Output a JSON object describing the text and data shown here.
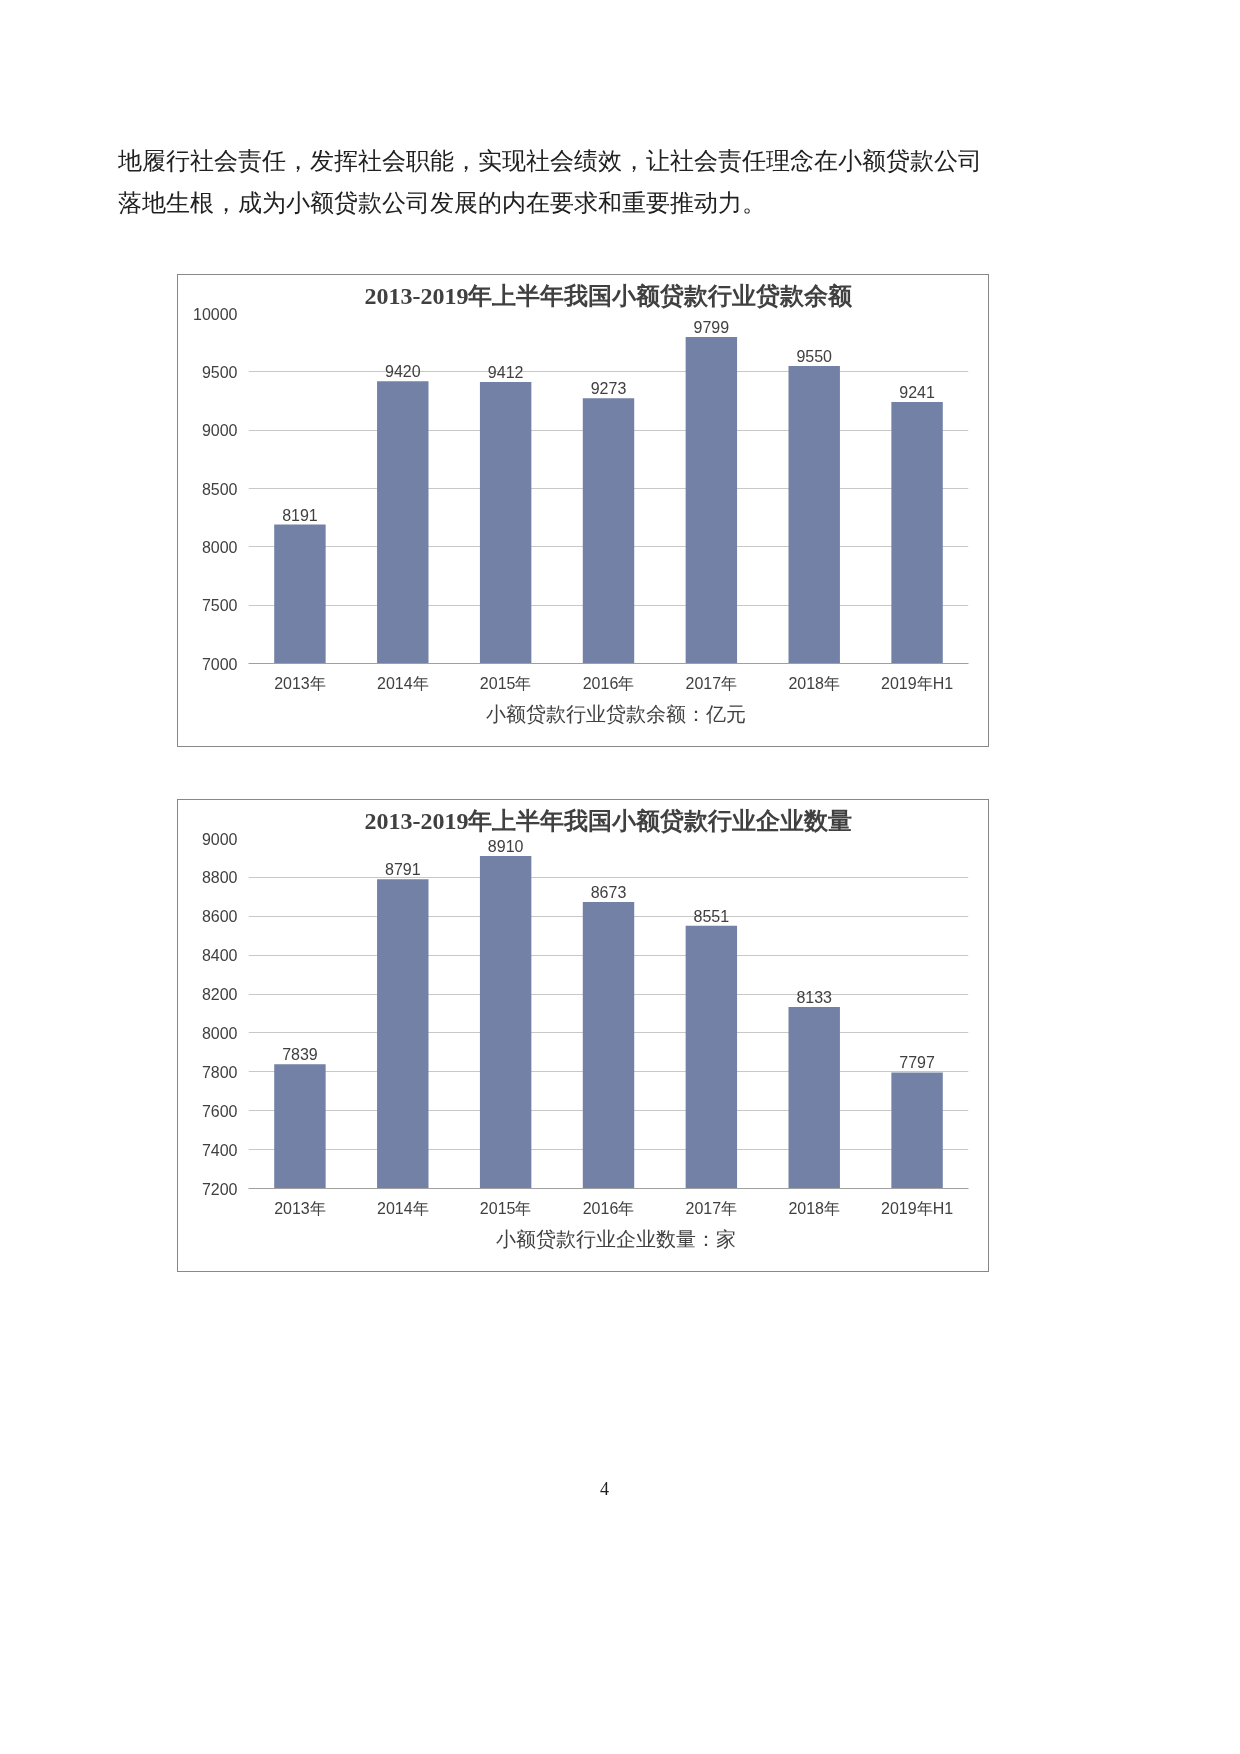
{
  "chart_data": [
    {
      "type": "bar",
      "title": "2013-2019年上半年我国小额贷款行业贷款余额",
      "annotations": [
        "地履行社会责任，发挥社会职能，实现社会绩效，让社会责任理念在小额贷款公司落地生根，成为小额贷款公司发展的内在要求和重要推动力。"
      ],
      "categories": [
        "2013年",
        "2014年",
        "2015年",
        "2016年",
        "2017年",
        "2018年",
        "2019年H1"
      ],
      "series": [
        {
          "name": "小额贷款行业贷款余额：亿元",
          "color": "#7381a6",
          "values": [
            8191,
            9420,
            9412,
            9273,
            9799,
            9550,
            9241
          ]
        }
      ],
      "ylim": [
        7000,
        10000
      ],
      "yticks": [
        7000,
        7500,
        8000,
        8500,
        9000,
        9500,
        10000
      ],
      "grid": "y",
      "legend": "bottom",
      "data_labels": true
    },
    {
      "type": "bar",
      "title": "2013-2019年上半年我国小额贷款行业企业数量",
      "annotations": [
        "4"
      ],
      "categories": [
        "2013年",
        "2014年",
        "2015年",
        "2016年",
        "2017年",
        "2018年",
        "2019年H1"
      ],
      "series": [
        {
          "name": "小额贷款行业企业数量：家",
          "color": "#7381a6",
          "values": [
            7839,
            8791,
            8910,
            8673,
            8551,
            8133,
            7797
          ]
        }
      ],
      "ylim": [
        7200,
        9000
      ],
      "yticks": [
        7200,
        7400,
        7600,
        7800,
        8000,
        8200,
        8400,
        8600,
        8800,
        9000
      ],
      "grid": "y",
      "legend": "bottom",
      "data_labels": true
    }
  ]
}
